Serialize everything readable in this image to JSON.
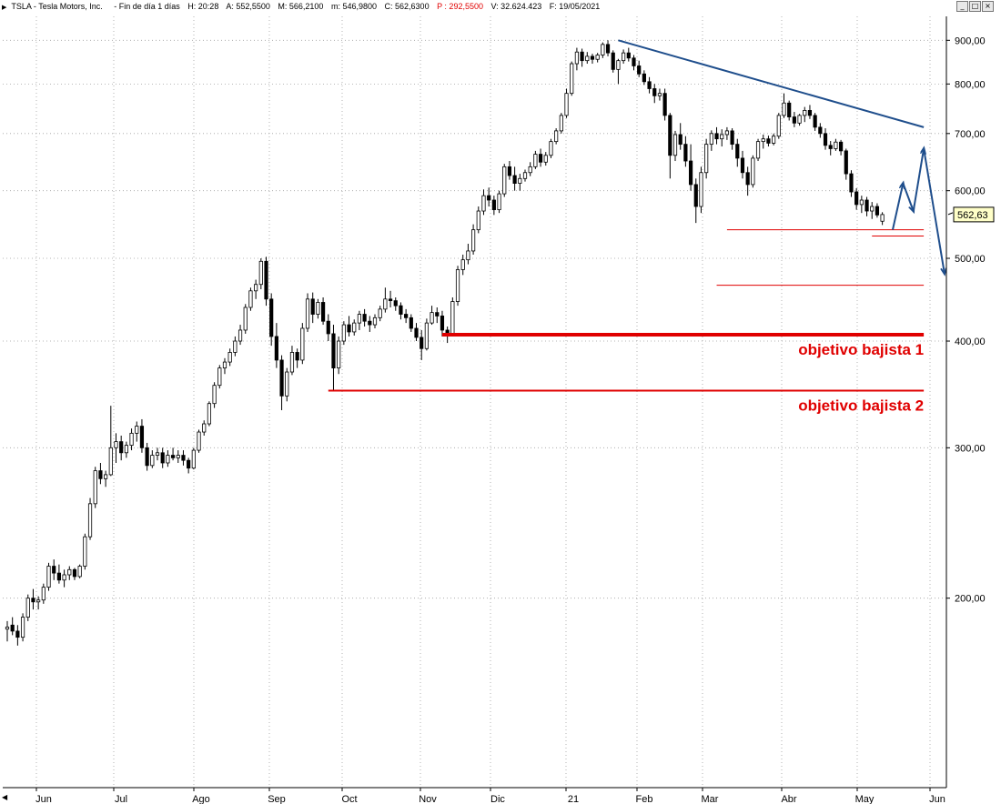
{
  "header": {
    "symbol": "TSLA - Tesla Motors, Inc.",
    "period": "- Fin de día 1 días",
    "time": "H: 20:28",
    "open": "A: 552,5500",
    "high": "M: 566,2100",
    "low": "m: 546,9800",
    "close": "C: 562,6300",
    "pivot": "P : 292,5500",
    "volume": "V: 32.624.423",
    "date": "F: 19/05/2021"
  },
  "window_controls": {
    "minimize": "_",
    "restore": "□",
    "close": "×"
  },
  "colors": {
    "candle": "#000000",
    "trendline": "#1f4e8c",
    "support": "#e00000",
    "grid": "#a0a0a0",
    "price_tag": "#ffffc8"
  },
  "icons": {
    "menu": "triangle-right-icon",
    "scroll": "triangle-left-icon"
  },
  "chart_data": {
    "type": "candlestick",
    "yscale": "log",
    "ylim": [
      120,
      960
    ],
    "y_ticks": [
      {
        "value": 900,
        "label": "900,00"
      },
      {
        "value": 800,
        "label": "800,00"
      },
      {
        "value": 700,
        "label": "700,00"
      },
      {
        "value": 600,
        "label": "600,00"
      },
      {
        "value": 500,
        "label": "500,00"
      },
      {
        "value": 400,
        "label": "400,00"
      },
      {
        "value": 300,
        "label": "300,00"
      },
      {
        "value": 200,
        "label": "200,00"
      }
    ],
    "x_ticks": [
      "Jun",
      "Jul",
      "Ago",
      "Sep",
      "Oct",
      "Nov",
      "Dic",
      "21",
      "Feb",
      "Mar",
      "Abr",
      "May",
      "Jun"
    ],
    "current_price": {
      "value": 562.63,
      "label": "562,63"
    },
    "candles": [
      {
        "o": 184,
        "h": 188,
        "l": 178,
        "c": 185
      },
      {
        "o": 186,
        "h": 190,
        "l": 181,
        "c": 183
      },
      {
        "o": 183,
        "h": 186,
        "l": 176,
        "c": 180
      },
      {
        "o": 180,
        "h": 192,
        "l": 178,
        "c": 190
      },
      {
        "o": 190,
        "h": 202,
        "l": 188,
        "c": 200
      },
      {
        "o": 200,
        "h": 205,
        "l": 194,
        "c": 198
      },
      {
        "o": 198,
        "h": 201,
        "l": 194,
        "c": 199
      },
      {
        "o": 199,
        "h": 208,
        "l": 197,
        "c": 206
      },
      {
        "o": 206,
        "h": 220,
        "l": 204,
        "c": 218
      },
      {
        "o": 218,
        "h": 222,
        "l": 210,
        "c": 214
      },
      {
        "o": 214,
        "h": 219,
        "l": 208,
        "c": 210
      },
      {
        "o": 210,
        "h": 216,
        "l": 206,
        "c": 213
      },
      {
        "o": 213,
        "h": 218,
        "l": 210,
        "c": 216
      },
      {
        "o": 216,
        "h": 217,
        "l": 210,
        "c": 212
      },
      {
        "o": 212,
        "h": 219,
        "l": 211,
        "c": 218
      },
      {
        "o": 218,
        "h": 238,
        "l": 216,
        "c": 236
      },
      {
        "o": 236,
        "h": 262,
        "l": 234,
        "c": 258
      },
      {
        "o": 258,
        "h": 285,
        "l": 255,
        "c": 282
      },
      {
        "o": 282,
        "h": 288,
        "l": 272,
        "c": 276
      },
      {
        "o": 276,
        "h": 282,
        "l": 270,
        "c": 279
      },
      {
        "o": 279,
        "h": 336,
        "l": 278,
        "c": 300
      },
      {
        "o": 300,
        "h": 312,
        "l": 288,
        "c": 305
      },
      {
        "o": 305,
        "h": 310,
        "l": 290,
        "c": 296
      },
      {
        "o": 296,
        "h": 305,
        "l": 292,
        "c": 302
      },
      {
        "o": 302,
        "h": 316,
        "l": 298,
        "c": 312
      },
      {
        "o": 312,
        "h": 322,
        "l": 305,
        "c": 318
      },
      {
        "o": 318,
        "h": 324,
        "l": 296,
        "c": 300
      },
      {
        "o": 300,
        "h": 304,
        "l": 282,
        "c": 286
      },
      {
        "o": 286,
        "h": 298,
        "l": 284,
        "c": 294
      },
      {
        "o": 294,
        "h": 300,
        "l": 290,
        "c": 296
      },
      {
        "o": 296,
        "h": 300,
        "l": 284,
        "c": 288
      },
      {
        "o": 288,
        "h": 298,
        "l": 285,
        "c": 294
      },
      {
        "o": 294,
        "h": 300,
        "l": 290,
        "c": 292
      },
      {
        "o": 292,
        "h": 298,
        "l": 288,
        "c": 294
      },
      {
        "o": 294,
        "h": 298,
        "l": 286,
        "c": 290
      },
      {
        "o": 290,
        "h": 292,
        "l": 280,
        "c": 284
      },
      {
        "o": 284,
        "h": 300,
        "l": 283,
        "c": 298
      },
      {
        "o": 298,
        "h": 315,
        "l": 296,
        "c": 313
      },
      {
        "o": 313,
        "h": 323,
        "l": 310,
        "c": 320
      },
      {
        "o": 320,
        "h": 340,
        "l": 318,
        "c": 338
      },
      {
        "o": 338,
        "h": 358,
        "l": 334,
        "c": 355
      },
      {
        "o": 355,
        "h": 375,
        "l": 352,
        "c": 372
      },
      {
        "o": 372,
        "h": 382,
        "l": 366,
        "c": 378
      },
      {
        "o": 378,
        "h": 392,
        "l": 374,
        "c": 388
      },
      {
        "o": 388,
        "h": 405,
        "l": 384,
        "c": 400
      },
      {
        "o": 400,
        "h": 418,
        "l": 396,
        "c": 412
      },
      {
        "o": 412,
        "h": 442,
        "l": 408,
        "c": 438
      },
      {
        "o": 438,
        "h": 462,
        "l": 434,
        "c": 458
      },
      {
        "o": 458,
        "h": 472,
        "l": 448,
        "c": 466
      },
      {
        "o": 466,
        "h": 500,
        "l": 460,
        "c": 496
      },
      {
        "o": 496,
        "h": 502,
        "l": 440,
        "c": 448
      },
      {
        "o": 448,
        "h": 455,
        "l": 395,
        "c": 405
      },
      {
        "o": 405,
        "h": 420,
        "l": 372,
        "c": 380
      },
      {
        "o": 380,
        "h": 385,
        "l": 332,
        "c": 345
      },
      {
        "o": 345,
        "h": 372,
        "l": 340,
        "c": 368
      },
      {
        "o": 368,
        "h": 395,
        "l": 365,
        "c": 388
      },
      {
        "o": 388,
        "h": 392,
        "l": 372,
        "c": 380
      },
      {
        "o": 380,
        "h": 420,
        "l": 376,
        "c": 414
      },
      {
        "o": 414,
        "h": 455,
        "l": 410,
        "c": 448
      },
      {
        "o": 448,
        "h": 456,
        "l": 420,
        "c": 430
      },
      {
        "o": 430,
        "h": 448,
        "l": 425,
        "c": 444
      },
      {
        "o": 444,
        "h": 450,
        "l": 418,
        "c": 422
      },
      {
        "o": 422,
        "h": 430,
        "l": 400,
        "c": 408
      },
      {
        "o": 408,
        "h": 418,
        "l": 350,
        "c": 372
      },
      {
        "o": 372,
        "h": 405,
        "l": 366,
        "c": 400
      },
      {
        "o": 400,
        "h": 422,
        "l": 396,
        "c": 418
      },
      {
        "o": 418,
        "h": 428,
        "l": 405,
        "c": 410
      },
      {
        "o": 410,
        "h": 424,
        "l": 406,
        "c": 420
      },
      {
        "o": 420,
        "h": 434,
        "l": 412,
        "c": 430
      },
      {
        "o": 430,
        "h": 436,
        "l": 416,
        "c": 422
      },
      {
        "o": 422,
        "h": 428,
        "l": 410,
        "c": 418
      },
      {
        "o": 418,
        "h": 430,
        "l": 414,
        "c": 426
      },
      {
        "o": 426,
        "h": 440,
        "l": 422,
        "c": 436
      },
      {
        "o": 436,
        "h": 462,
        "l": 432,
        "c": 448
      },
      {
        "o": 448,
        "h": 458,
        "l": 438,
        "c": 446
      },
      {
        "o": 446,
        "h": 450,
        "l": 434,
        "c": 440
      },
      {
        "o": 440,
        "h": 444,
        "l": 424,
        "c": 430
      },
      {
        "o": 430,
        "h": 436,
        "l": 420,
        "c": 426
      },
      {
        "o": 426,
        "h": 430,
        "l": 410,
        "c": 414
      },
      {
        "o": 414,
        "h": 420,
        "l": 400,
        "c": 404
      },
      {
        "o": 404,
        "h": 412,
        "l": 380,
        "c": 392
      },
      {
        "o": 392,
        "h": 425,
        "l": 390,
        "c": 420
      },
      {
        "o": 420,
        "h": 440,
        "l": 418,
        "c": 432
      },
      {
        "o": 432,
        "h": 438,
        "l": 420,
        "c": 428
      },
      {
        "o": 428,
        "h": 434,
        "l": 405,
        "c": 412
      },
      {
        "o": 412,
        "h": 416,
        "l": 398,
        "c": 408
      },
      {
        "o": 408,
        "h": 450,
        "l": 406,
        "c": 445
      },
      {
        "o": 445,
        "h": 490,
        "l": 440,
        "c": 485
      },
      {
        "o": 485,
        "h": 505,
        "l": 478,
        "c": 498
      },
      {
        "o": 498,
        "h": 520,
        "l": 492,
        "c": 510
      },
      {
        "o": 510,
        "h": 548,
        "l": 505,
        "c": 540
      },
      {
        "o": 540,
        "h": 575,
        "l": 535,
        "c": 568
      },
      {
        "o": 568,
        "h": 602,
        "l": 562,
        "c": 592
      },
      {
        "o": 592,
        "h": 605,
        "l": 575,
        "c": 585
      },
      {
        "o": 585,
        "h": 592,
        "l": 562,
        "c": 570
      },
      {
        "o": 570,
        "h": 600,
        "l": 565,
        "c": 595
      },
      {
        "o": 595,
        "h": 645,
        "l": 590,
        "c": 640
      },
      {
        "o": 640,
        "h": 650,
        "l": 618,
        "c": 625
      },
      {
        "o": 625,
        "h": 640,
        "l": 600,
        "c": 612
      },
      {
        "o": 612,
        "h": 628,
        "l": 600,
        "c": 620
      },
      {
        "o": 620,
        "h": 635,
        "l": 615,
        "c": 630
      },
      {
        "o": 630,
        "h": 648,
        "l": 624,
        "c": 640
      },
      {
        "o": 640,
        "h": 668,
        "l": 636,
        "c": 662
      },
      {
        "o": 662,
        "h": 672,
        "l": 640,
        "c": 648
      },
      {
        "o": 648,
        "h": 666,
        "l": 642,
        "c": 660
      },
      {
        "o": 660,
        "h": 690,
        "l": 655,
        "c": 685
      },
      {
        "o": 685,
        "h": 710,
        "l": 680,
        "c": 705
      },
      {
        "o": 705,
        "h": 740,
        "l": 700,
        "c": 735
      },
      {
        "o": 735,
        "h": 790,
        "l": 730,
        "c": 780
      },
      {
        "o": 780,
        "h": 850,
        "l": 775,
        "c": 845
      },
      {
        "o": 845,
        "h": 882,
        "l": 830,
        "c": 872
      },
      {
        "o": 872,
        "h": 880,
        "l": 838,
        "c": 852
      },
      {
        "o": 852,
        "h": 872,
        "l": 845,
        "c": 862
      },
      {
        "o": 862,
        "h": 868,
        "l": 845,
        "c": 855
      },
      {
        "o": 855,
        "h": 870,
        "l": 848,
        "c": 865
      },
      {
        "o": 865,
        "h": 895,
        "l": 858,
        "c": 890
      },
      {
        "o": 890,
        "h": 900,
        "l": 862,
        "c": 870
      },
      {
        "o": 870,
        "h": 876,
        "l": 825,
        "c": 832
      },
      {
        "o": 832,
        "h": 856,
        "l": 800,
        "c": 852
      },
      {
        "o": 852,
        "h": 878,
        "l": 845,
        "c": 870
      },
      {
        "o": 870,
        "h": 882,
        "l": 850,
        "c": 858
      },
      {
        "o": 858,
        "h": 865,
        "l": 830,
        "c": 840
      },
      {
        "o": 840,
        "h": 852,
        "l": 815,
        "c": 822
      },
      {
        "o": 822,
        "h": 830,
        "l": 798,
        "c": 805
      },
      {
        "o": 805,
        "h": 815,
        "l": 780,
        "c": 790
      },
      {
        "o": 790,
        "h": 800,
        "l": 760,
        "c": 775
      },
      {
        "o": 775,
        "h": 790,
        "l": 765,
        "c": 780
      },
      {
        "o": 780,
        "h": 790,
        "l": 725,
        "c": 735
      },
      {
        "o": 735,
        "h": 740,
        "l": 620,
        "c": 660
      },
      {
        "o": 660,
        "h": 705,
        "l": 650,
        "c": 698
      },
      {
        "o": 698,
        "h": 720,
        "l": 670,
        "c": 680
      },
      {
        "o": 680,
        "h": 695,
        "l": 640,
        "c": 650
      },
      {
        "o": 650,
        "h": 680,
        "l": 600,
        "c": 610
      },
      {
        "o": 610,
        "h": 620,
        "l": 550,
        "c": 575
      },
      {
        "o": 575,
        "h": 640,
        "l": 565,
        "c": 630
      },
      {
        "o": 630,
        "h": 690,
        "l": 620,
        "c": 680
      },
      {
        "o": 680,
        "h": 706,
        "l": 668,
        "c": 700
      },
      {
        "o": 700,
        "h": 712,
        "l": 680,
        "c": 690
      },
      {
        "o": 690,
        "h": 708,
        "l": 676,
        "c": 698
      },
      {
        "o": 698,
        "h": 712,
        "l": 688,
        "c": 705
      },
      {
        "o": 705,
        "h": 710,
        "l": 670,
        "c": 680
      },
      {
        "o": 680,
        "h": 690,
        "l": 640,
        "c": 655
      },
      {
        "o": 655,
        "h": 668,
        "l": 620,
        "c": 630
      },
      {
        "o": 630,
        "h": 640,
        "l": 592,
        "c": 610
      },
      {
        "o": 610,
        "h": 660,
        "l": 605,
        "c": 655
      },
      {
        "o": 655,
        "h": 690,
        "l": 650,
        "c": 685
      },
      {
        "o": 685,
        "h": 698,
        "l": 672,
        "c": 690
      },
      {
        "o": 690,
        "h": 696,
        "l": 676,
        "c": 682
      },
      {
        "o": 682,
        "h": 700,
        "l": 678,
        "c": 695
      },
      {
        "o": 695,
        "h": 740,
        "l": 690,
        "c": 735
      },
      {
        "o": 735,
        "h": 780,
        "l": 730,
        "c": 760
      },
      {
        "o": 760,
        "h": 765,
        "l": 725,
        "c": 732
      },
      {
        "o": 732,
        "h": 742,
        "l": 712,
        "c": 720
      },
      {
        "o": 720,
        "h": 738,
        "l": 715,
        "c": 735
      },
      {
        "o": 735,
        "h": 752,
        "l": 722,
        "c": 745
      },
      {
        "o": 745,
        "h": 756,
        "l": 728,
        "c": 735
      },
      {
        "o": 735,
        "h": 740,
        "l": 705,
        "c": 712
      },
      {
        "o": 712,
        "h": 720,
        "l": 692,
        "c": 700
      },
      {
        "o": 700,
        "h": 710,
        "l": 670,
        "c": 678
      },
      {
        "o": 678,
        "h": 686,
        "l": 660,
        "c": 672
      },
      {
        "o": 672,
        "h": 690,
        "l": 668,
        "c": 684
      },
      {
        "o": 684,
        "h": 688,
        "l": 660,
        "c": 668
      },
      {
        "o": 668,
        "h": 672,
        "l": 618,
        "c": 628
      },
      {
        "o": 628,
        "h": 634,
        "l": 590,
        "c": 598
      },
      {
        "o": 598,
        "h": 604,
        "l": 570,
        "c": 578
      },
      {
        "o": 578,
        "h": 592,
        "l": 565,
        "c": 585
      },
      {
        "o": 585,
        "h": 590,
        "l": 560,
        "c": 568
      },
      {
        "o": 568,
        "h": 582,
        "l": 556,
        "c": 575
      },
      {
        "o": 575,
        "h": 580,
        "l": 558,
        "c": 562
      },
      {
        "o": 552.55,
        "h": 566.21,
        "l": 546.98,
        "c": 562.63
      }
    ],
    "trendline": {
      "from": {
        "bar": 118,
        "value": 900
      },
      "to": {
        "bar": 177,
        "value": 712
      }
    },
    "levels": [
      {
        "value": 540,
        "from_bar": 139,
        "to_bar": 177,
        "weight": "thin",
        "label": ""
      },
      {
        "value": 531,
        "from_bar": 167,
        "to_bar": 177,
        "weight": "thin",
        "label": ""
      },
      {
        "value": 465,
        "from_bar": 137,
        "to_bar": 177,
        "weight": "thin",
        "label": ""
      },
      {
        "value": 407,
        "from_bar": 84,
        "to_bar": 177,
        "weight": "thick",
        "label": "objetivo bajista 1"
      },
      {
        "value": 350,
        "from_bar": 62,
        "to_bar": 177,
        "weight": "medium",
        "label": "objetivo bajista 2"
      }
    ],
    "projection": [
      {
        "bar": 171,
        "value": 540
      },
      {
        "bar": 173,
        "value": 612
      },
      {
        "bar": 175,
        "value": 568
      },
      {
        "bar": 177,
        "value": 672
      },
      {
        "bar": 181,
        "value": 480
      }
    ]
  }
}
